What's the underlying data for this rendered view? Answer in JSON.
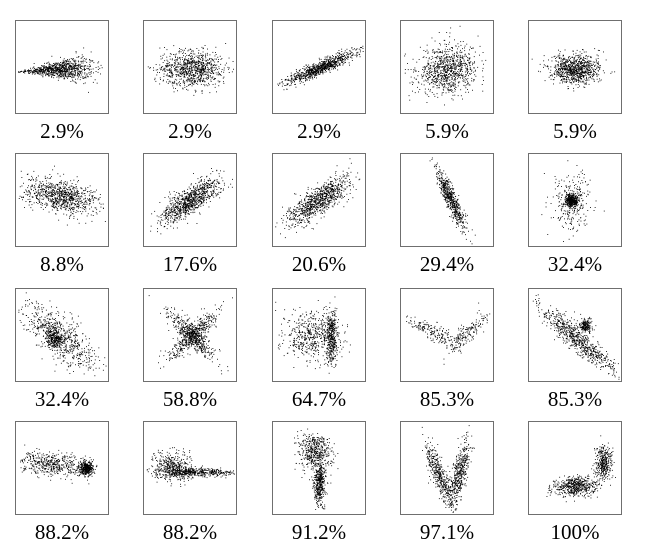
{
  "chart_data": {
    "type": "scatter",
    "panels": [
      {
        "label": "2.9%",
        "shape": "gaussian-wedge",
        "points": 900
      },
      {
        "label": "2.9%",
        "shape": "gaussian-flat",
        "points": 900
      },
      {
        "label": "2.9%",
        "shape": "gaussian-diagonal-thin",
        "points": 900
      },
      {
        "label": "5.9%",
        "shape": "gaussian-round-tilted",
        "points": 900
      },
      {
        "label": "5.9%",
        "shape": "gaussian-compact",
        "points": 900
      },
      {
        "label": "8.8%",
        "shape": "gaussian-wide-tilted",
        "points": 900
      },
      {
        "label": "17.6%",
        "shape": "gaussian-diagonal",
        "points": 900
      },
      {
        "label": "20.6%",
        "shape": "gaussian-diagonal",
        "points": 900
      },
      {
        "label": "29.4%",
        "shape": "gaussian-steep-thin",
        "points": 600
      },
      {
        "label": "32.4%",
        "shape": "dense-core-with-halo",
        "points": 700
      },
      {
        "label": "32.4%",
        "shape": "negative-diagonal-with-core",
        "points": 900
      },
      {
        "label": "58.8%",
        "shape": "x-cross",
        "points": 900
      },
      {
        "label": "64.7%",
        "shape": "cloud-plus-vertical-band",
        "points": 900
      },
      {
        "label": "85.3%",
        "shape": "v-shape-sparse",
        "points": 350
      },
      {
        "label": "85.3%",
        "shape": "negative-band-with-blob",
        "points": 900
      },
      {
        "label": "88.2%",
        "shape": "spread-plus-dense-blob",
        "points": 900
      },
      {
        "label": "88.2%",
        "shape": "horizontal-band-with-cloud",
        "points": 900
      },
      {
        "label": "91.2%",
        "shape": "two-vertical-clusters",
        "points": 900
      },
      {
        "label": "97.1%",
        "shape": "two-parallel-bands",
        "points": 900
      },
      {
        "label": "100%",
        "shape": "two-offset-clusters",
        "points": 900
      }
    ]
  }
}
